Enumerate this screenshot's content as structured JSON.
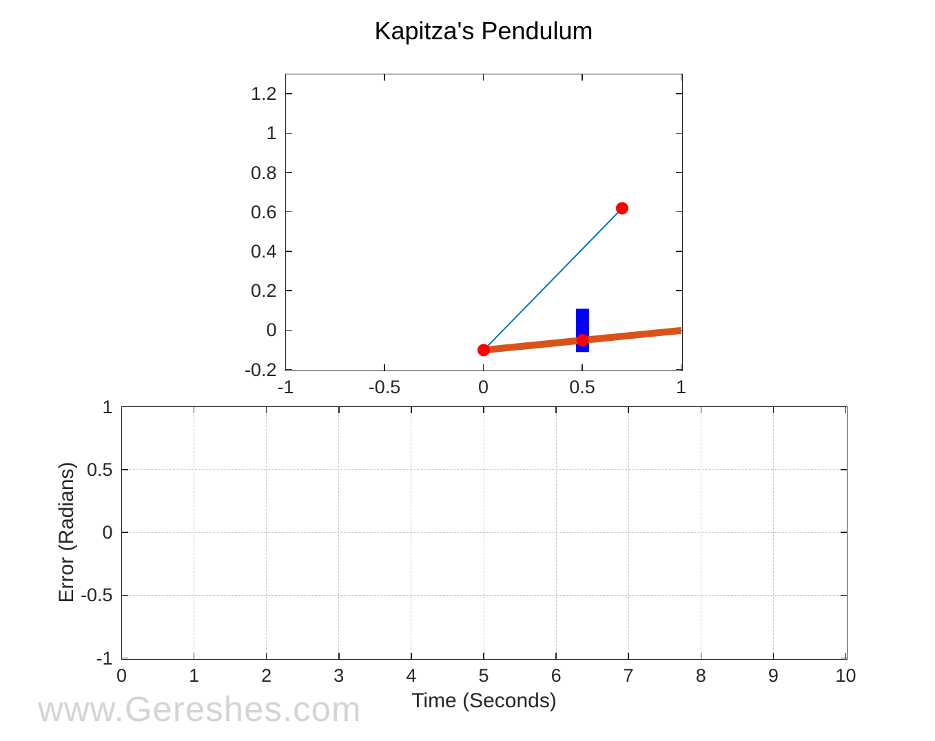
{
  "watermark": "www.Gereshes.com",
  "colors": {
    "axis": "#262626",
    "grid": "#bdbdbd",
    "background": "#ffffff",
    "pendulum_rod_blue": "#0072BD",
    "rail_orange": "#D95319",
    "joint_red": "#FF0000",
    "cart_blue": "#0000FF",
    "watermark_gray": "#d4d4d4"
  },
  "chart_data": [
    {
      "name": "pendulum-view",
      "type": "line",
      "title": "Kapitza's Pendulum",
      "xlabel": "",
      "ylabel": "",
      "xlim": [
        -1,
        1
      ],
      "ylim": [
        -0.2,
        1.3
      ],
      "xticks": [
        -1,
        -0.5,
        0,
        0.5,
        1
      ],
      "yticks": [
        -0.2,
        0,
        0.2,
        0.4,
        0.6,
        0.8,
        1,
        1.2
      ],
      "grid": false,
      "legend": null,
      "elements": [
        {
          "kind": "rect",
          "name": "cart",
          "center": [
            0.5,
            0
          ],
          "width": 0.066,
          "height": 0.22,
          "color": "#0000FF"
        },
        {
          "kind": "line",
          "name": "rail",
          "from": [
            0,
            -0.1
          ],
          "to": [
            1,
            0
          ],
          "color": "#D95319",
          "stroke_px": 10
        },
        {
          "kind": "line",
          "name": "pendulum-rod",
          "from": [
            0,
            -0.1
          ],
          "to": [
            0.7,
            0.62
          ],
          "color": "#0072BD",
          "stroke_px": 2
        },
        {
          "kind": "markers",
          "name": "joint",
          "points": [
            [
              0,
              -0.1
            ],
            [
              0.5,
              -0.05
            ],
            [
              0.7,
              0.62
            ]
          ],
          "color": "#FF0000",
          "radius_px": 9
        }
      ]
    },
    {
      "name": "error-plot",
      "type": "line",
      "title": "",
      "xlabel": "Time (Seconds)",
      "ylabel": "Error (Radians)",
      "xlim": [
        0,
        10
      ],
      "ylim": [
        -1,
        1
      ],
      "xticks": [
        0,
        1,
        2,
        3,
        4,
        5,
        6,
        7,
        8,
        9,
        10
      ],
      "yticks": [
        -1,
        -0.5,
        0,
        0.5,
        1
      ],
      "grid": true,
      "legend": null,
      "series": []
    }
  ]
}
